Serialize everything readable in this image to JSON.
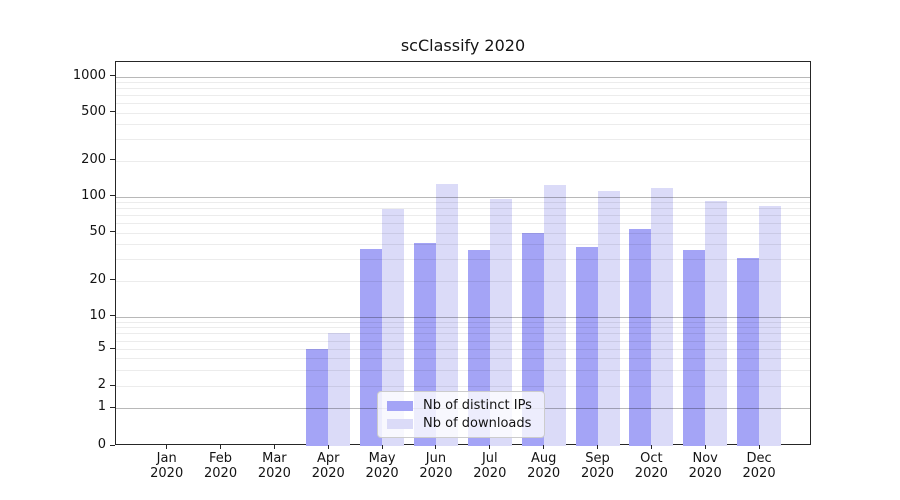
{
  "chart_data": {
    "type": "bar",
    "title": "scClassify 2020",
    "categories": [
      "Jan 2020",
      "Feb 2020",
      "Mar 2020",
      "Apr 2020",
      "May 2020",
      "Jun 2020",
      "Jul 2020",
      "Aug 2020",
      "Sep 2020",
      "Oct 2020",
      "Nov 2020",
      "Dec 2020"
    ],
    "x_tick_month": [
      "Jan",
      "Feb",
      "Mar",
      "Apr",
      "May",
      "Jun",
      "Jul",
      "Aug",
      "Sep",
      "Oct",
      "Nov",
      "Dec"
    ],
    "x_tick_year": "2020",
    "series": [
      {
        "name": "Nb of distinct IPs",
        "color": "#a4a4f6",
        "values": [
          0,
          0,
          0,
          5,
          37,
          41,
          36,
          50,
          38,
          54,
          36,
          31
        ]
      },
      {
        "name": "Nb of downloads",
        "color": "#dbdbf8",
        "values": [
          0,
          0,
          0,
          7,
          79,
          127,
          95,
          125,
          111,
          119,
          92,
          84
        ]
      }
    ],
    "xlabel": "",
    "ylabel": "",
    "y_ticks": [
      0,
      1,
      2,
      5,
      10,
      20,
      50,
      100,
      200,
      500,
      1000
    ],
    "y_minor_gridlines": [
      2,
      3,
      4,
      5,
      6,
      7,
      8,
      9,
      20,
      30,
      40,
      50,
      60,
      70,
      80,
      90,
      200,
      300,
      400,
      500,
      600,
      700,
      800,
      900
    ],
    "y_major_gridlines": [
      1,
      10,
      100,
      1000
    ],
    "ylim": [
      0,
      1000
    ],
    "y_scale": "log-like",
    "grid": true,
    "legend_position": "lower center",
    "colors": {
      "axis": "#262626",
      "minor_grid": "#ececec",
      "major_grid": "#b8b8b8",
      "background": "#ffffff"
    }
  }
}
